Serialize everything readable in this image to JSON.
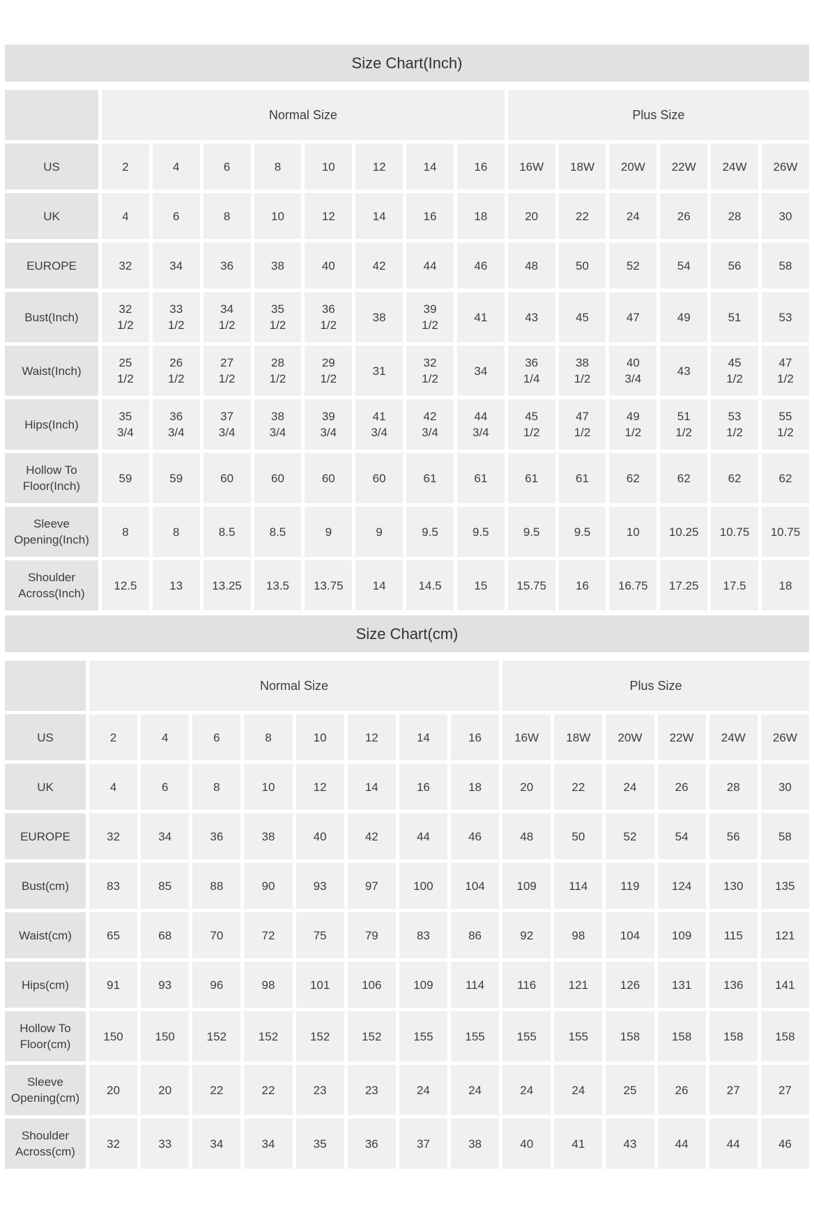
{
  "styles": {
    "title_bar_bg": "#e1e1e1",
    "label_cell_bg": "#e4e4e4",
    "data_cell_bg": "#f0f0f0",
    "text_color": "#3a3c3f",
    "page_bg": "#ffffff"
  },
  "chart_data": [
    {
      "type": "table",
      "title": "Size Chart(Inch)",
      "column_groups": [
        {
          "label": "",
          "span": 1
        },
        {
          "label": "Normal Size",
          "span": 8
        },
        {
          "label": "Plus Size",
          "span": 6
        }
      ],
      "rows": [
        {
          "label": "US",
          "values": [
            "2",
            "4",
            "6",
            "8",
            "10",
            "12",
            "14",
            "16",
            "16W",
            "18W",
            "20W",
            "22W",
            "24W",
            "26W"
          ]
        },
        {
          "label": "UK",
          "values": [
            "4",
            "6",
            "8",
            "10",
            "12",
            "14",
            "16",
            "18",
            "20",
            "22",
            "24",
            "26",
            "28",
            "30"
          ]
        },
        {
          "label": "EUROPE",
          "values": [
            "32",
            "34",
            "36",
            "38",
            "40",
            "42",
            "44",
            "46",
            "48",
            "50",
            "52",
            "54",
            "56",
            "58"
          ]
        },
        {
          "label": "Bust(Inch)",
          "values": [
            "32\n1/2",
            "33\n1/2",
            "34\n1/2",
            "35\n1/2",
            "36\n1/2",
            "38",
            "39\n1/2",
            "41",
            "43",
            "45",
            "47",
            "49",
            "51",
            "53"
          ]
        },
        {
          "label": "Waist(Inch)",
          "values": [
            "25\n1/2",
            "26\n1/2",
            "27\n1/2",
            "28\n1/2",
            "29\n1/2",
            "31",
            "32\n1/2",
            "34",
            "36\n1/4",
            "38\n1/2",
            "40\n3/4",
            "43",
            "45\n1/2",
            "47\n1/2"
          ]
        },
        {
          "label": "Hips(Inch)",
          "values": [
            "35\n3/4",
            "36\n3/4",
            "37\n3/4",
            "38\n3/4",
            "39\n3/4",
            "41\n3/4",
            "42\n3/4",
            "44\n3/4",
            "45\n1/2",
            "47\n1/2",
            "49\n1/2",
            "51\n1/2",
            "53\n1/2",
            "55\n1/2"
          ]
        },
        {
          "label": "Hollow To Floor(Inch)",
          "values": [
            "59",
            "59",
            "60",
            "60",
            "60",
            "60",
            "61",
            "61",
            "61",
            "61",
            "62",
            "62",
            "62",
            "62"
          ]
        },
        {
          "label": "Sleeve Opening(Inch)",
          "values": [
            "8",
            "8",
            "8.5",
            "8.5",
            "9",
            "9",
            "9.5",
            "9.5",
            "9.5",
            "9.5",
            "10",
            "10.25",
            "10.75",
            "10.75"
          ]
        },
        {
          "label": "Shoulder Across(Inch)",
          "values": [
            "12.5",
            "13",
            "13.25",
            "13.5",
            "13.75",
            "14",
            "14.5",
            "15",
            "15.75",
            "16",
            "16.75",
            "17.25",
            "17.5",
            "18"
          ]
        }
      ]
    },
    {
      "type": "table",
      "title": "Size Chart(cm)",
      "column_groups": [
        {
          "label": "",
          "span": 1
        },
        {
          "label": "Normal Size",
          "span": 8
        },
        {
          "label": "Plus Size",
          "span": 6
        }
      ],
      "rows": [
        {
          "label": "US",
          "values": [
            "2",
            "4",
            "6",
            "8",
            "10",
            "12",
            "14",
            "16",
            "16W",
            "18W",
            "20W",
            "22W",
            "24W",
            "26W"
          ]
        },
        {
          "label": "UK",
          "values": [
            "4",
            "6",
            "8",
            "10",
            "12",
            "14",
            "16",
            "18",
            "20",
            "22",
            "24",
            "26",
            "28",
            "30"
          ]
        },
        {
          "label": "EUROPE",
          "values": [
            "32",
            "34",
            "36",
            "38",
            "40",
            "42",
            "44",
            "46",
            "48",
            "50",
            "52",
            "54",
            "56",
            "58"
          ]
        },
        {
          "label": "Bust(cm)",
          "values": [
            "83",
            "85",
            "88",
            "90",
            "93",
            "97",
            "100",
            "104",
            "109",
            "114",
            "119",
            "124",
            "130",
            "135"
          ]
        },
        {
          "label": "Waist(cm)",
          "values": [
            "65",
            "68",
            "70",
            "72",
            "75",
            "79",
            "83",
            "86",
            "92",
            "98",
            "104",
            "109",
            "115",
            "121"
          ]
        },
        {
          "label": "Hips(cm)",
          "values": [
            "91",
            "93",
            "96",
            "98",
            "101",
            "106",
            "109",
            "114",
            "116",
            "121",
            "126",
            "131",
            "136",
            "141"
          ]
        },
        {
          "label": "Hollow To Floor(cm)",
          "values": [
            "150",
            "150",
            "152",
            "152",
            "152",
            "152",
            "155",
            "155",
            "155",
            "155",
            "158",
            "158",
            "158",
            "158"
          ]
        },
        {
          "label": "Sleeve Opening(cm)",
          "values": [
            "20",
            "20",
            "22",
            "22",
            "23",
            "23",
            "24",
            "24",
            "24",
            "24",
            "25",
            "26",
            "27",
            "27"
          ]
        },
        {
          "label": "Shoulder Across(cm)",
          "values": [
            "32",
            "33",
            "34",
            "34",
            "35",
            "36",
            "37",
            "38",
            "40",
            "41",
            "43",
            "44",
            "44",
            "46"
          ]
        }
      ]
    }
  ]
}
